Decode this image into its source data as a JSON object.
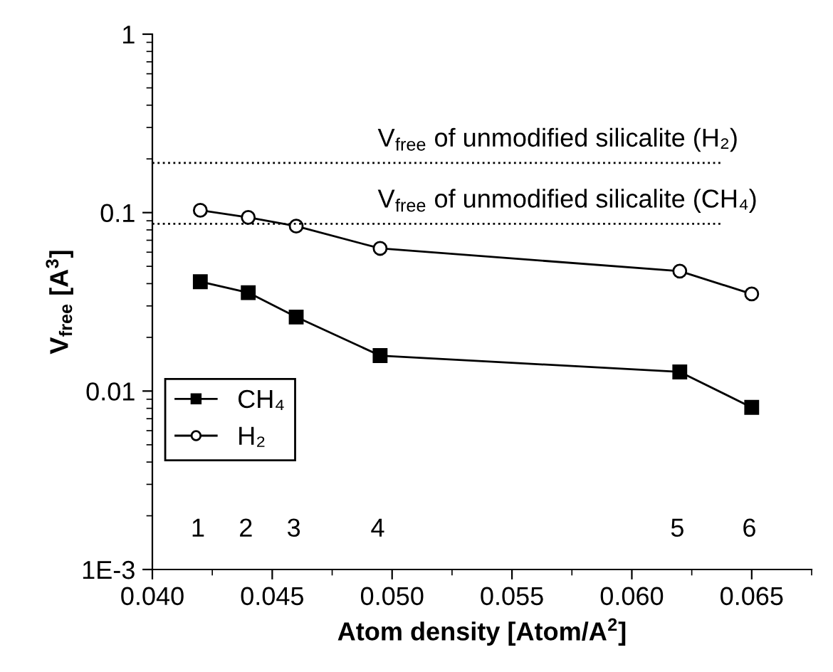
{
  "chart_data": {
    "type": "line",
    "xlabel": "Atom density [Atom/A$^{2}$]",
    "ylabel": "V$_{free}$ [A$^{3}$]",
    "log": "y",
    "xlim": [
      0.04,
      0.0675
    ],
    "xticks": [
      {
        "value": 0.04,
        "label": "0.040"
      },
      {
        "value": 0.045,
        "label": "0.045"
      },
      {
        "value": 0.05,
        "label": "0.050"
      },
      {
        "value": 0.055,
        "label": "0.055"
      },
      {
        "value": 0.06,
        "label": "0.060"
      },
      {
        "value": 0.065,
        "label": "0.065"
      }
    ],
    "ylim": [
      0.001,
      1
    ],
    "yticks": [
      {
        "value": 0.001,
        "label": "1E-3"
      },
      0.01,
      0.1,
      1
    ],
    "grid": false,
    "legend": "left",
    "line_style": "solid",
    "series": [
      {
        "name": "CH₄",
        "color": "#000000",
        "marker": "square",
        "x": [
          0.042,
          0.044,
          0.046,
          0.0495,
          0.062,
          0.065
        ],
        "values": [
          0.041,
          0.0356,
          0.026,
          0.0158,
          0.0128,
          0.0081
        ]
      },
      {
        "name": "H₂",
        "color": "#000000",
        "marker": "circle",
        "x": [
          0.042,
          0.044,
          0.046,
          0.0495,
          0.062,
          0.065
        ],
        "values": [
          0.103,
          0.094,
          0.084,
          0.063,
          0.047,
          0.035
        ]
      }
    ],
    "ref_lines": [
      {
        "axis": "y",
        "value": 0.19,
        "label": "V$_{free}$ of unmodified silicalite (H₂)",
        "line_style": "dotted",
        "color": "#000000"
      },
      {
        "axis": "y",
        "value": 0.0865,
        "label": "V$_{free}$ of unmodified silicalite (CH₄)",
        "line_style": "dotted",
        "color": "#000000"
      }
    ],
    "annotations": [
      "1",
      "2",
      "3",
      "4",
      "5",
      "6"
    ]
  }
}
